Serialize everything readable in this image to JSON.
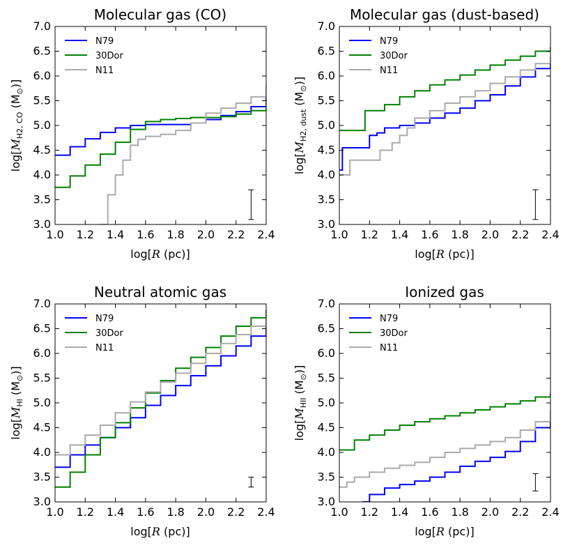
{
  "colors": {
    "N79": "#0000ff",
    "30Dor": "#008000",
    "N11": "#aaaaaa"
  },
  "chart_data": [
    {
      "type": "line",
      "step": true,
      "title": "Molecular gas (CO)",
      "xlabel": "log[R (pc)]",
      "ylabel": "log[M_H2,CO (M_⊙)]",
      "ylabel_main": "M",
      "ylabel_sub": "H2, CO",
      "xlim": [
        1.0,
        2.4
      ],
      "ylim": [
        3.0,
        7.0
      ],
      "xticks": [
        "1.0",
        "1.2",
        "1.4",
        "1.6",
        "1.8",
        "2.0",
        "2.2",
        "2.4"
      ],
      "yticks": [
        "3.0",
        "3.5",
        "4.0",
        "4.5",
        "5.0",
        "5.5",
        "6.0",
        "6.5",
        "7.0"
      ],
      "legend": [
        "N79",
        "30Dor",
        "N11"
      ],
      "errorbar": {
        "x": 2.3,
        "ylow": 3.1,
        "yhigh": 3.7
      },
      "series": [
        {
          "name": "N79",
          "x": [
            1.0,
            1.1,
            1.2,
            1.3,
            1.4,
            1.5,
            1.6,
            1.7,
            1.8,
            1.9,
            2.0,
            2.1,
            2.2,
            2.3,
            2.4
          ],
          "y": [
            4.4,
            4.57,
            4.73,
            4.86,
            4.95,
            5.0,
            5.02,
            5.02,
            5.02,
            5.05,
            5.12,
            5.2,
            5.28,
            5.38,
            5.58
          ]
        },
        {
          "name": "30Dor",
          "x": [
            1.0,
            1.1,
            1.2,
            1.3,
            1.4,
            1.5,
            1.6,
            1.7,
            1.8,
            1.9,
            2.0,
            2.1,
            2.2,
            2.3,
            2.4
          ],
          "y": [
            3.75,
            3.98,
            4.2,
            4.42,
            4.66,
            4.92,
            5.08,
            5.12,
            5.14,
            5.16,
            5.16,
            5.18,
            5.23,
            5.3,
            5.5
          ]
        },
        {
          "name": "N11",
          "x": [
            1.3,
            1.35,
            1.4,
            1.45,
            1.5,
            1.55,
            1.6,
            1.7,
            1.8,
            1.9,
            2.0,
            2.1,
            2.2,
            2.3,
            2.4
          ],
          "y": [
            3.0,
            3.6,
            4.0,
            4.3,
            4.6,
            4.72,
            4.78,
            4.82,
            4.9,
            5.05,
            5.25,
            5.35,
            5.45,
            5.58,
            5.82
          ]
        }
      ]
    },
    {
      "type": "line",
      "step": true,
      "title": "Molecular gas (dust-based)",
      "xlabel": "log[R (pc)]",
      "ylabel": "log[M_H2,dust (M_⊙)]",
      "ylabel_main": "M",
      "ylabel_sub": "H2, dust",
      "xlim": [
        1.0,
        2.4
      ],
      "ylim": [
        3.0,
        7.0
      ],
      "xticks": [
        "1.0",
        "1.2",
        "1.4",
        "1.6",
        "1.8",
        "2.0",
        "2.2",
        "2.4"
      ],
      "yticks": [
        "3.0",
        "3.5",
        "4.0",
        "4.5",
        "5.0",
        "5.5",
        "6.0",
        "6.5",
        "7.0"
      ],
      "legend": [
        "N79",
        "30Dor",
        "N11"
      ],
      "errorbar": {
        "x": 2.3,
        "ylow": 3.1,
        "yhigh": 3.7
      },
      "series": [
        {
          "name": "N79",
          "x": [
            1.0,
            1.02,
            1.2,
            1.25,
            1.3,
            1.4,
            1.5,
            1.6,
            1.7,
            1.8,
            1.9,
            2.0,
            2.1,
            2.2,
            2.3,
            2.4
          ],
          "y": [
            4.1,
            4.55,
            4.8,
            4.85,
            4.95,
            5.0,
            5.05,
            5.15,
            5.25,
            5.35,
            5.5,
            5.62,
            5.8,
            5.98,
            6.15,
            6.35
          ]
        },
        {
          "name": "30Dor",
          "x": [
            1.0,
            1.17,
            1.3,
            1.4,
            1.5,
            1.6,
            1.7,
            1.8,
            1.9,
            2.0,
            2.1,
            2.2,
            2.3,
            2.4
          ],
          "y": [
            4.9,
            5.3,
            5.42,
            5.58,
            5.7,
            5.82,
            5.92,
            6.02,
            6.12,
            6.22,
            6.32,
            6.4,
            6.5,
            6.58
          ]
        },
        {
          "name": "N11",
          "x": [
            1.0,
            1.07,
            1.27,
            1.35,
            1.4,
            1.45,
            1.5,
            1.6,
            1.7,
            1.8,
            1.9,
            2.0,
            2.1,
            2.2,
            2.3,
            2.4
          ],
          "y": [
            4.0,
            4.3,
            4.5,
            4.65,
            4.8,
            4.95,
            5.15,
            5.3,
            5.45,
            5.58,
            5.7,
            5.85,
            5.98,
            6.12,
            6.25,
            6.4
          ]
        }
      ]
    },
    {
      "type": "line",
      "step": true,
      "title": "Neutral atomic gas",
      "xlabel": "log[R (pc)]",
      "ylabel": "log[M_HI (M_⊙)]",
      "ylabel_main": "M",
      "ylabel_sub": "HI",
      "xlim": [
        1.0,
        2.4
      ],
      "ylim": [
        3.0,
        7.0
      ],
      "xticks": [
        "1.0",
        "1.2",
        "1.4",
        "1.6",
        "1.8",
        "2.0",
        "2.2",
        "2.4"
      ],
      "yticks": [
        "3.0",
        "3.5",
        "4.0",
        "4.5",
        "5.0",
        "5.5",
        "6.0",
        "6.5",
        "7.0"
      ],
      "legend": [
        "N79",
        "30Dor",
        "N11"
      ],
      "errorbar": {
        "x": 2.3,
        "ylow": 3.3,
        "yhigh": 3.5
      },
      "series": [
        {
          "name": "N79",
          "x": [
            1.0,
            1.1,
            1.2,
            1.3,
            1.4,
            1.5,
            1.6,
            1.7,
            1.8,
            1.9,
            2.0,
            2.1,
            2.2,
            2.3,
            2.4
          ],
          "y": [
            3.7,
            3.95,
            4.15,
            4.3,
            4.5,
            4.7,
            4.95,
            5.15,
            5.35,
            5.55,
            5.75,
            5.95,
            6.15,
            6.35,
            6.55
          ]
        },
        {
          "name": "30Dor",
          "x": [
            1.0,
            1.1,
            1.2,
            1.3,
            1.4,
            1.5,
            1.6,
            1.7,
            1.8,
            1.9,
            2.0,
            2.1,
            2.2,
            2.3,
            2.4
          ],
          "y": [
            3.3,
            3.6,
            3.95,
            4.3,
            4.6,
            4.9,
            5.2,
            5.45,
            5.7,
            5.92,
            6.12,
            6.35,
            6.55,
            6.72,
            6.88
          ]
        },
        {
          "name": "N11",
          "x": [
            1.0,
            1.1,
            1.2,
            1.3,
            1.4,
            1.5,
            1.6,
            1.7,
            1.8,
            1.9,
            2.0,
            2.1,
            2.2,
            2.3,
            2.4
          ],
          "y": [
            3.95,
            4.15,
            4.35,
            4.55,
            4.8,
            5.02,
            5.22,
            5.42,
            5.6,
            5.8,
            6.0,
            6.2,
            6.38,
            6.55,
            6.72
          ]
        }
      ]
    },
    {
      "type": "line",
      "step": true,
      "title": "Ionized gas",
      "xlabel": "log[R (pc)]",
      "ylabel": "log[M_HII (M_⊙)]",
      "ylabel_main": "M",
      "ylabel_sub": "HII",
      "xlim": [
        1.0,
        2.4
      ],
      "ylim": [
        3.0,
        7.0
      ],
      "xticks": [
        "1.0",
        "1.2",
        "1.4",
        "1.6",
        "1.8",
        "2.0",
        "2.2",
        "2.4"
      ],
      "yticks": [
        "3.0",
        "3.5",
        "4.0",
        "4.5",
        "5.0",
        "5.5",
        "6.0",
        "6.5",
        "7.0"
      ],
      "legend": [
        "N79",
        "30Dor",
        "N11"
      ],
      "errorbar": {
        "x": 2.3,
        "ylow": 3.22,
        "yhigh": 3.57
      },
      "series": [
        {
          "name": "N79",
          "x": [
            1.15,
            1.2,
            1.3,
            1.4,
            1.5,
            1.6,
            1.7,
            1.8,
            1.9,
            2.0,
            2.1,
            2.2,
            2.3,
            2.4
          ],
          "y": [
            3.0,
            3.15,
            3.28,
            3.35,
            3.42,
            3.5,
            3.6,
            3.72,
            3.82,
            3.9,
            4.02,
            4.22,
            4.5,
            4.82
          ]
        },
        {
          "name": "30Dor",
          "x": [
            1.0,
            1.1,
            1.2,
            1.3,
            1.4,
            1.5,
            1.6,
            1.7,
            1.8,
            1.9,
            2.0,
            2.1,
            2.2,
            2.3,
            2.4
          ],
          "y": [
            4.05,
            4.25,
            4.35,
            4.45,
            4.55,
            4.62,
            4.68,
            4.74,
            4.8,
            4.86,
            4.92,
            4.98,
            5.04,
            5.12,
            5.2
          ]
        },
        {
          "name": "N11",
          "x": [
            1.0,
            1.05,
            1.1,
            1.2,
            1.3,
            1.4,
            1.5,
            1.6,
            1.7,
            1.8,
            1.9,
            2.0,
            2.1,
            2.2,
            2.3,
            2.4
          ],
          "y": [
            3.3,
            3.4,
            3.5,
            3.6,
            3.68,
            3.74,
            3.8,
            3.9,
            4.0,
            4.08,
            4.15,
            4.22,
            4.3,
            4.45,
            4.62,
            4.85
          ]
        }
      ]
    }
  ]
}
